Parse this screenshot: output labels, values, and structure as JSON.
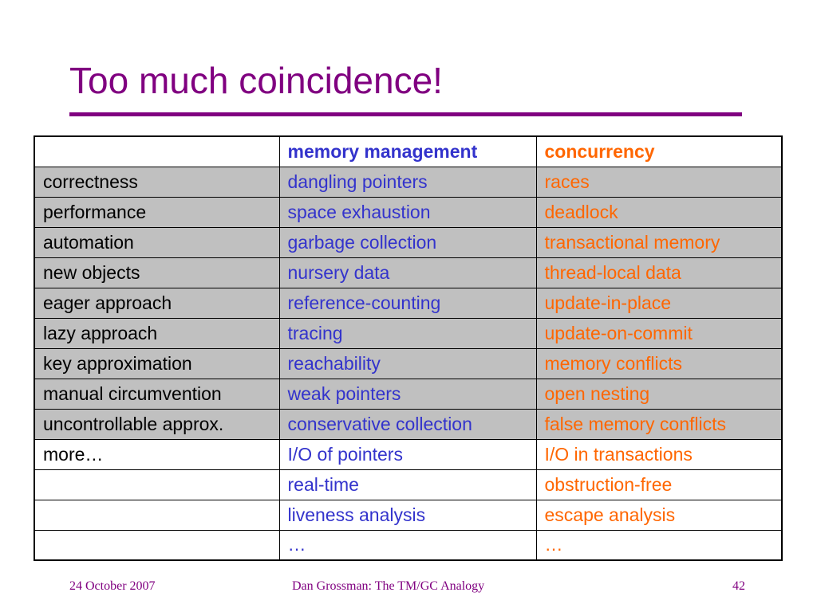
{
  "slide": {
    "title": "Too much coincidence!",
    "colors": {
      "title": "#800080",
      "memory_column": "#3333cc",
      "concurrency_column": "#ff6600",
      "shaded_row": "#c0c0c0"
    }
  },
  "table": {
    "header": [
      "",
      "memory management",
      "concurrency"
    ],
    "rows": [
      {
        "shaded": true,
        "cells": [
          "correctness",
          "dangling pointers",
          "races"
        ]
      },
      {
        "shaded": true,
        "cells": [
          "performance",
          "space exhaustion",
          "deadlock"
        ]
      },
      {
        "shaded": true,
        "cells": [
          "automation",
          "garbage collection",
          "transactional memory"
        ]
      },
      {
        "shaded": true,
        "cells": [
          "new objects",
          "nursery data",
          "thread-local data"
        ]
      },
      {
        "shaded": true,
        "cells": [
          "eager approach",
          "reference-counting",
          "update-in-place"
        ]
      },
      {
        "shaded": true,
        "cells": [
          "lazy approach",
          "tracing",
          "update-on-commit"
        ]
      },
      {
        "shaded": true,
        "cells": [
          "key approximation",
          "reachability",
          "memory conflicts"
        ]
      },
      {
        "shaded": true,
        "cells": [
          "manual circumvention",
          "weak pointers",
          "open nesting"
        ]
      },
      {
        "shaded": true,
        "cells": [
          "uncontrollable approx.",
          "conservative collection",
          "false memory conflicts"
        ]
      },
      {
        "shaded": false,
        "cells": [
          "more…",
          "I/O of pointers",
          "I/O in transactions"
        ]
      },
      {
        "shaded": false,
        "cells": [
          "",
          "real-time",
          "obstruction-free"
        ]
      },
      {
        "shaded": false,
        "cells": [
          "",
          "liveness analysis",
          "escape analysis"
        ]
      },
      {
        "shaded": false,
        "cells": [
          "",
          "…",
          "…"
        ]
      }
    ]
  },
  "footer": {
    "date": "24 October 2007",
    "talk": "Dan Grossman: The TM/GC Analogy",
    "page": "42"
  }
}
